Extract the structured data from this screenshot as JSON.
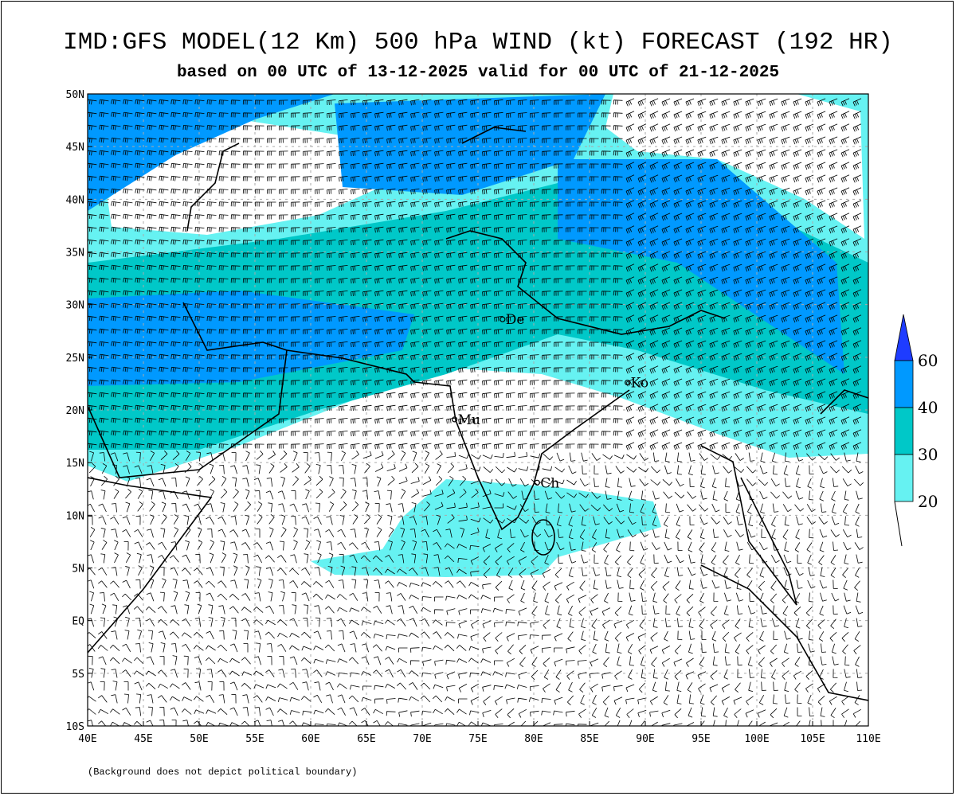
{
  "title": "IMD:GFS MODEL(12 Km) 500 hPa WIND (kt) FORECAST (192 HR)",
  "subtitle": "based on 00 UTC of 13-12-2025 valid for 00 UTC of 21-12-2025",
  "footnote": "(Background does not depict political boundary)",
  "map": {
    "lon_range": [
      40,
      110
    ],
    "lat_range": [
      -10,
      50
    ],
    "lon_ticks": [
      "40E",
      "45E",
      "50E",
      "55E",
      "60E",
      "65E",
      "70E",
      "75E",
      "80E",
      "85E",
      "90E",
      "95E",
      "100E",
      "105E",
      "110E"
    ],
    "lat_ticks": [
      "50N",
      "45N",
      "40N",
      "35N",
      "30N",
      "25N",
      "20N",
      "15N",
      "10N",
      "5N",
      "EQ",
      "5S",
      "10S"
    ],
    "cities": [
      {
        "label": "De",
        "lon": 77.2,
        "lat": 28.6
      },
      {
        "label": "Ko",
        "lon": 88.4,
        "lat": 22.6
      },
      {
        "label": "Mu",
        "lon": 72.9,
        "lat": 19.1
      },
      {
        "label": "Ch",
        "lon": 80.3,
        "lat": 13.1
      }
    ]
  },
  "colorbar": {
    "unit": "kt",
    "levels": [
      "20",
      "30",
      "40",
      "60"
    ],
    "colors": {
      "20-30": "#66f2f2",
      "30-40": "#00c8c8",
      "40-60": "#0099ff",
      "60+": "#1e3cff"
    }
  }
}
